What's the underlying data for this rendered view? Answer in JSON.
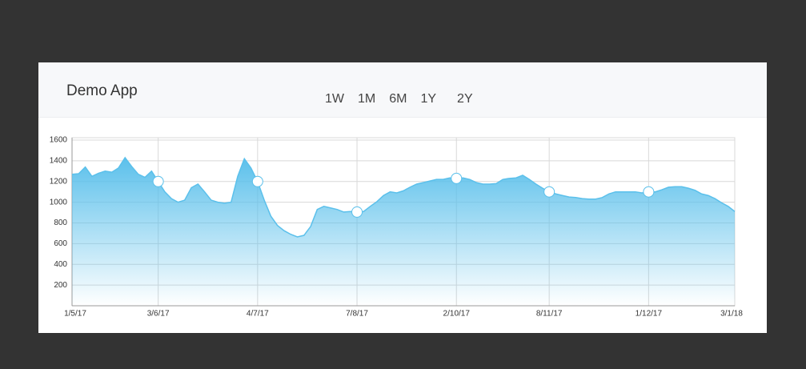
{
  "header": {
    "title": "Demo App",
    "buttons": [
      "1W",
      "1M",
      "6M",
      "1Y",
      "2Y"
    ]
  },
  "chart_data": {
    "type": "area",
    "categories": [
      "1/5/17",
      null,
      null,
      null,
      null,
      null,
      null,
      null,
      null,
      null,
      null,
      null,
      null,
      "3/6/17",
      null,
      null,
      null,
      null,
      null,
      null,
      null,
      null,
      null,
      null,
      null,
      null,
      null,
      null,
      "4/7/17",
      null,
      null,
      null,
      null,
      null,
      null,
      null,
      null,
      null,
      null,
      null,
      null,
      null,
      null,
      "7/8/17",
      null,
      null,
      null,
      null,
      null,
      null,
      null,
      null,
      null,
      null,
      null,
      null,
      null,
      null,
      "2/10/17",
      null,
      null,
      null,
      null,
      null,
      null,
      null,
      null,
      null,
      null,
      null,
      null,
      null,
      "8/11/17",
      null,
      null,
      null,
      null,
      null,
      null,
      null,
      null,
      null,
      null,
      null,
      null,
      null,
      null,
      "1/12/17",
      null,
      null,
      null,
      null,
      null,
      null,
      null,
      null,
      null,
      null,
      null,
      null,
      "3/1/18"
    ],
    "series": [
      {
        "color": "#5bc0eb",
        "values": [
          1270,
          1275,
          1340,
          1250,
          1280,
          1300,
          1290,
          1330,
          1430,
          1345,
          1270,
          1240,
          1300,
          1200,
          1100,
          1035,
          1000,
          1020,
          1140,
          1175,
          1100,
          1020,
          1000,
          990,
          1000,
          1250,
          1420,
          1330,
          1200,
          1020,
          865,
          775,
          725,
          690,
          665,
          680,
          765,
          930,
          960,
          945,
          930,
          905,
          910,
          905,
          910,
          960,
          1005,
          1065,
          1100,
          1090,
          1110,
          1145,
          1175,
          1190,
          1205,
          1220,
          1220,
          1235,
          1230,
          1235,
          1220,
          1190,
          1175,
          1175,
          1180,
          1220,
          1230,
          1235,
          1260,
          1220,
          1175,
          1135,
          1100,
          1080,
          1065,
          1050,
          1045,
          1035,
          1030,
          1030,
          1045,
          1080,
          1100,
          1100,
          1100,
          1100,
          1090,
          1100,
          1100,
          1120,
          1145,
          1150,
          1150,
          1135,
          1115,
          1080,
          1065,
          1035,
          995,
          960,
          910
        ]
      }
    ],
    "ylim": [
      0,
      1600
    ],
    "yticks": [
      200,
      400,
      600,
      800,
      1000,
      1200,
      1400,
      1600
    ],
    "grid": true
  }
}
